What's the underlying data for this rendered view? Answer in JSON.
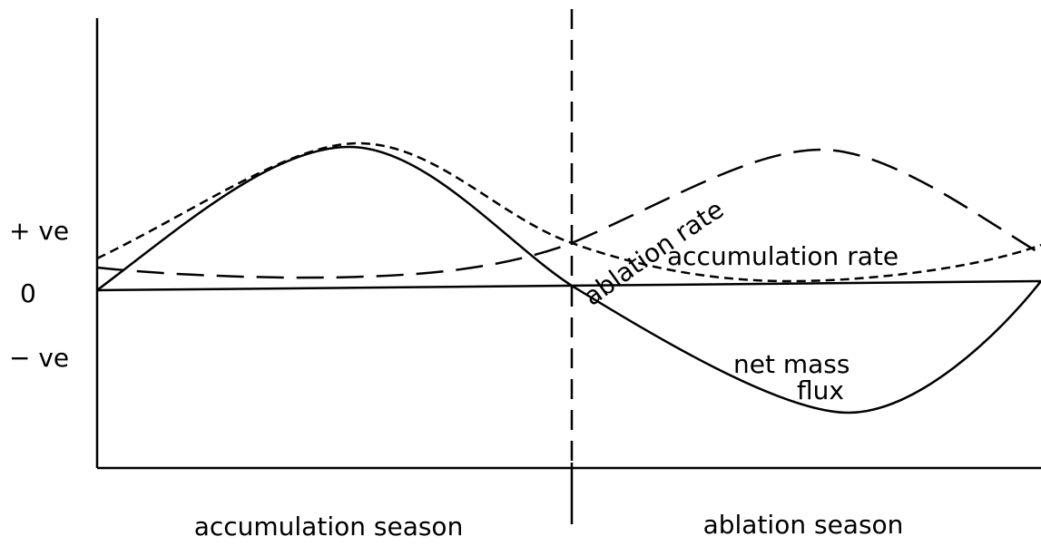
{
  "y_labels": {
    "positive": "+ ve",
    "zero": "0",
    "negative": "− ve"
  },
  "curves": {
    "ablation": "ablation rate",
    "accumulation": "accumulation rate",
    "net_line1": "net mass",
    "net_line2": "flux"
  },
  "seasons": {
    "accumulation": "accumulation season",
    "ablation": "ablation season"
  }
}
